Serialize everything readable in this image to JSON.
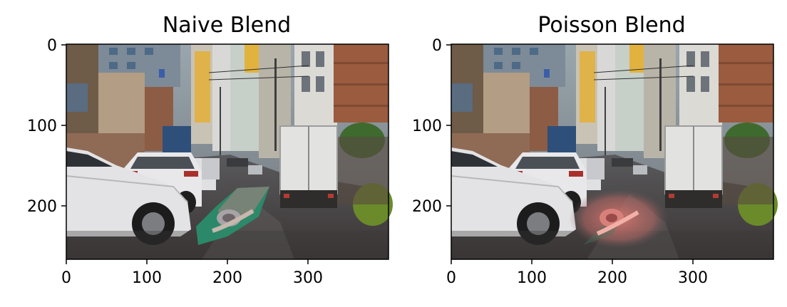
{
  "chart_data": [
    {
      "type": "image",
      "title": "Naive Blend",
      "image_description": "Rainy urban alley street with parked white cars, a white box truck, multi-storey buildings, and a snail pasted onto the wet road with a visible green-tinted rectangular patch (no blending).",
      "xlim": [
        0,
        400
      ],
      "ylim": [
        270,
        0
      ],
      "xticks": [
        0,
        100,
        200,
        300
      ],
      "yticks": [
        0,
        100,
        200
      ]
    },
    {
      "type": "image",
      "title": "Poisson Blend",
      "image_description": "Same rainy urban alley street scene; the snail is blended into the road with a pinkish hue and soft edges (Poisson blending).",
      "xlim": [
        0,
        400
      ],
      "ylim": [
        270,
        0
      ],
      "xticks": [
        0,
        100,
        200,
        300
      ],
      "yticks": [
        0,
        100,
        200
      ]
    }
  ]
}
